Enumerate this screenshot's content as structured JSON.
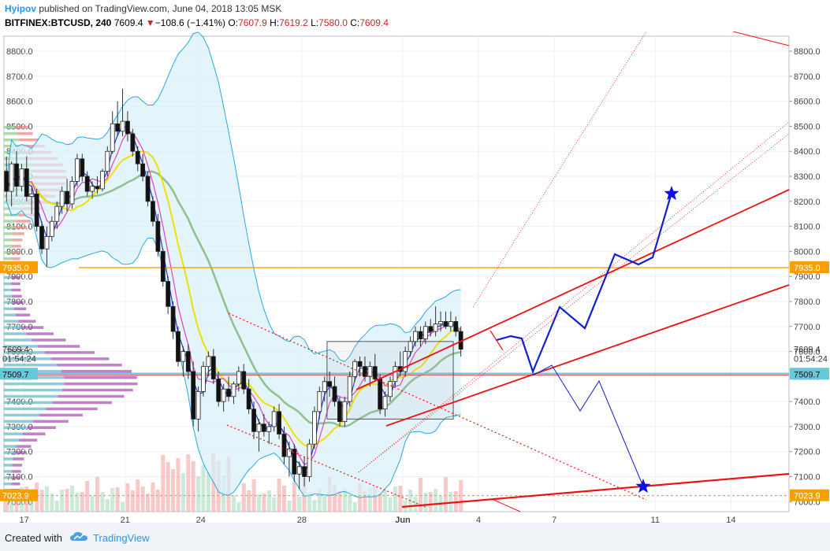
{
  "header": {
    "author": "Hyipov",
    "published": " published on TradingView.com, June 04, 2018 13:05 MSK",
    "symbol": "BITFINEX:BTCUSD, 240",
    "last": "7609.4",
    "change_arrow": "▼",
    "change": "−108.6 (−1.41%)",
    "o_label": "O:",
    "o_value": "7607.9",
    "h_label": "H:",
    "h_value": "7619.2",
    "l_label": "L:",
    "l_value": "7580.0",
    "c_label": "C:",
    "c_value": "7609.4"
  },
  "footer": {
    "created_with": "Created with",
    "brand": "TradingView",
    "logo_icon": "tradingview-cloud-icon"
  },
  "colors": {
    "bb_line": "#29a8e0",
    "bb_fill": "#d9effa",
    "ma_fast": "#3030d0",
    "ma_pink": "#e040c0",
    "ma_yellow": "#f0e000",
    "ma_green": "#8fc08f",
    "channel": "#ee1111",
    "projection": "#1020d0",
    "level_orange": "#f5a000",
    "level_teal": "#66c8d8",
    "star": "#1010e0"
  },
  "chart_data": {
    "type": "candlestick",
    "title": "",
    "ylim": [
      6960,
      8860
    ],
    "y_ticks": [
      "8800.0",
      "8700.0",
      "8600.0",
      "8500.0",
      "8400.0",
      "8300.0",
      "8200.0",
      "8100.0",
      "8000.0",
      "7900.0",
      "7800.0",
      "7700.0",
      "7600.0",
      "7500.0",
      "7400.0",
      "7300.0",
      "7200.0",
      "7100.0",
      "7000.0"
    ],
    "x_ticks": [
      {
        "label": "17",
        "day": 17
      },
      {
        "label": "21",
        "day": 21
      },
      {
        "label": "24",
        "day": 24
      },
      {
        "label": "28",
        "day": 28
      },
      {
        "label": "Jun",
        "day": 32
      },
      {
        "label": "4",
        "day": 35
      },
      {
        "label": "7",
        "day": 38
      },
      {
        "label": "11",
        "day": 42
      },
      {
        "label": "14",
        "day": 45
      }
    ],
    "x_range_day": [
      16.2,
      47.3
    ],
    "price_labels": [
      {
        "text": "7935.0",
        "value": 7935.0,
        "style": "orange"
      },
      {
        "text": "7609.4",
        "value": 7609.4,
        "style": "plain"
      },
      {
        "text": "01:54:24",
        "value": 7572,
        "style": "plain"
      },
      {
        "text": "7509.7",
        "value": 7509.7,
        "style": "teal"
      },
      {
        "text": "7023.9",
        "value": 7023.9,
        "style": "orange"
      }
    ],
    "levels": [
      {
        "value": 7935.0,
        "style": "solid-orange"
      },
      {
        "value": 7509.7,
        "style": "teal-red"
      },
      {
        "value": 7023.9,
        "style": "dotted-orange"
      }
    ],
    "candles": [
      {
        "d": 16.3,
        "o": 8320,
        "h": 8380,
        "l": 8200,
        "c": 8240
      },
      {
        "d": 16.5,
        "o": 8240,
        "h": 8360,
        "l": 8180,
        "c": 8350
      },
      {
        "d": 16.7,
        "o": 8350,
        "h": 8400,
        "l": 8220,
        "c": 8260
      },
      {
        "d": 16.9,
        "o": 8260,
        "h": 8350,
        "l": 8240,
        "c": 8330
      },
      {
        "d": 17.1,
        "o": 8330,
        "h": 8380,
        "l": 8200,
        "c": 8220
      },
      {
        "d": 17.3,
        "o": 8220,
        "h": 8260,
        "l": 8150,
        "c": 8230
      },
      {
        "d": 17.5,
        "o": 8230,
        "h": 8250,
        "l": 8080,
        "c": 8100
      },
      {
        "d": 17.7,
        "o": 8100,
        "h": 8120,
        "l": 7990,
        "c": 8010
      },
      {
        "d": 17.9,
        "o": 8010,
        "h": 8100,
        "l": 7940,
        "c": 8060
      },
      {
        "d": 18.1,
        "o": 8060,
        "h": 8140,
        "l": 8040,
        "c": 8120
      },
      {
        "d": 18.3,
        "o": 8120,
        "h": 8200,
        "l": 8090,
        "c": 8180
      },
      {
        "d": 18.5,
        "o": 8180,
        "h": 8260,
        "l": 8150,
        "c": 8240
      },
      {
        "d": 18.7,
        "o": 8240,
        "h": 8290,
        "l": 8160,
        "c": 8190
      },
      {
        "d": 18.9,
        "o": 8190,
        "h": 8300,
        "l": 8170,
        "c": 8280
      },
      {
        "d": 19.1,
        "o": 8280,
        "h": 8390,
        "l": 8260,
        "c": 8370
      },
      {
        "d": 19.3,
        "o": 8370,
        "h": 8390,
        "l": 8280,
        "c": 8300
      },
      {
        "d": 19.5,
        "o": 8300,
        "h": 8320,
        "l": 8220,
        "c": 8240
      },
      {
        "d": 19.7,
        "o": 8240,
        "h": 8280,
        "l": 8210,
        "c": 8260
      },
      {
        "d": 19.9,
        "o": 8260,
        "h": 8300,
        "l": 8230,
        "c": 8250
      },
      {
        "d": 20.1,
        "o": 8250,
        "h": 8330,
        "l": 8240,
        "c": 8320
      },
      {
        "d": 20.3,
        "o": 8320,
        "h": 8420,
        "l": 8300,
        "c": 8400
      },
      {
        "d": 20.5,
        "o": 8400,
        "h": 8560,
        "l": 8390,
        "c": 8510
      },
      {
        "d": 20.7,
        "o": 8510,
        "h": 8600,
        "l": 8460,
        "c": 8480
      },
      {
        "d": 20.9,
        "o": 8480,
        "h": 8650,
        "l": 8460,
        "c": 8520
      },
      {
        "d": 21.1,
        "o": 8520,
        "h": 8560,
        "l": 8440,
        "c": 8470
      },
      {
        "d": 21.3,
        "o": 8470,
        "h": 8490,
        "l": 8380,
        "c": 8400
      },
      {
        "d": 21.5,
        "o": 8400,
        "h": 8420,
        "l": 8320,
        "c": 8350
      },
      {
        "d": 21.7,
        "o": 8350,
        "h": 8390,
        "l": 8280,
        "c": 8300
      },
      {
        "d": 21.9,
        "o": 8300,
        "h": 8320,
        "l": 8180,
        "c": 8200
      },
      {
        "d": 22.1,
        "o": 8200,
        "h": 8220,
        "l": 8100,
        "c": 8120
      },
      {
        "d": 22.3,
        "o": 8120,
        "h": 8150,
        "l": 7980,
        "c": 8000
      },
      {
        "d": 22.5,
        "o": 8000,
        "h": 8010,
        "l": 7860,
        "c": 7880
      },
      {
        "d": 22.7,
        "o": 7880,
        "h": 7900,
        "l": 7750,
        "c": 7780
      },
      {
        "d": 22.9,
        "o": 7780,
        "h": 7800,
        "l": 7650,
        "c": 7680
      },
      {
        "d": 23.1,
        "o": 7680,
        "h": 7700,
        "l": 7540,
        "c": 7560
      },
      {
        "d": 23.3,
        "o": 7560,
        "h": 7620,
        "l": 7500,
        "c": 7600
      },
      {
        "d": 23.5,
        "o": 7600,
        "h": 7630,
        "l": 7490,
        "c": 7520
      },
      {
        "d": 23.7,
        "o": 7520,
        "h": 7560,
        "l": 7300,
        "c": 7330
      },
      {
        "d": 23.9,
        "o": 7330,
        "h": 7460,
        "l": 7280,
        "c": 7440
      },
      {
        "d": 24.1,
        "o": 7440,
        "h": 7560,
        "l": 7420,
        "c": 7540
      },
      {
        "d": 24.3,
        "o": 7540,
        "h": 7600,
        "l": 7500,
        "c": 7580
      },
      {
        "d": 24.5,
        "o": 7580,
        "h": 7610,
        "l": 7470,
        "c": 7490
      },
      {
        "d": 24.7,
        "o": 7490,
        "h": 7520,
        "l": 7380,
        "c": 7400
      },
      {
        "d": 24.9,
        "o": 7400,
        "h": 7470,
        "l": 7360,
        "c": 7450
      },
      {
        "d": 25.1,
        "o": 7450,
        "h": 7500,
        "l": 7400,
        "c": 7420
      },
      {
        "d": 25.3,
        "o": 7420,
        "h": 7480,
        "l": 7390,
        "c": 7470
      },
      {
        "d": 25.5,
        "o": 7470,
        "h": 7540,
        "l": 7440,
        "c": 7520
      },
      {
        "d": 25.7,
        "o": 7520,
        "h": 7550,
        "l": 7430,
        "c": 7450
      },
      {
        "d": 25.9,
        "o": 7450,
        "h": 7490,
        "l": 7350,
        "c": 7370
      },
      {
        "d": 26.1,
        "o": 7370,
        "h": 7400,
        "l": 7250,
        "c": 7280
      },
      {
        "d": 26.3,
        "o": 7280,
        "h": 7330,
        "l": 7200,
        "c": 7310
      },
      {
        "d": 26.5,
        "o": 7310,
        "h": 7350,
        "l": 7260,
        "c": 7280
      },
      {
        "d": 26.7,
        "o": 7280,
        "h": 7320,
        "l": 7230,
        "c": 7300
      },
      {
        "d": 26.9,
        "o": 7300,
        "h": 7380,
        "l": 7280,
        "c": 7360
      },
      {
        "d": 27.1,
        "o": 7360,
        "h": 7390,
        "l": 7250,
        "c": 7270
      },
      {
        "d": 27.3,
        "o": 7270,
        "h": 7300,
        "l": 7150,
        "c": 7180
      },
      {
        "d": 27.5,
        "o": 7180,
        "h": 7240,
        "l": 7100,
        "c": 7210
      },
      {
        "d": 27.7,
        "o": 7210,
        "h": 7230,
        "l": 7080,
        "c": 7110
      },
      {
        "d": 27.9,
        "o": 7110,
        "h": 7160,
        "l": 7050,
        "c": 7140
      },
      {
        "d": 28.1,
        "o": 7140,
        "h": 7180,
        "l": 7060,
        "c": 7100
      },
      {
        "d": 28.3,
        "o": 7100,
        "h": 7250,
        "l": 7080,
        "c": 7230
      },
      {
        "d": 28.5,
        "o": 7230,
        "h": 7380,
        "l": 7210,
        "c": 7360
      },
      {
        "d": 28.7,
        "o": 7360,
        "h": 7460,
        "l": 7330,
        "c": 7440
      },
      {
        "d": 28.9,
        "o": 7440,
        "h": 7500,
        "l": 7400,
        "c": 7480
      },
      {
        "d": 29.1,
        "o": 7480,
        "h": 7520,
        "l": 7420,
        "c": 7460
      },
      {
        "d": 29.3,
        "o": 7460,
        "h": 7500,
        "l": 7380,
        "c": 7400
      },
      {
        "d": 29.5,
        "o": 7400,
        "h": 7420,
        "l": 7300,
        "c": 7320
      },
      {
        "d": 29.7,
        "o": 7320,
        "h": 7420,
        "l": 7300,
        "c": 7400
      },
      {
        "d": 29.9,
        "o": 7400,
        "h": 7520,
        "l": 7380,
        "c": 7500
      },
      {
        "d": 30.1,
        "o": 7500,
        "h": 7570,
        "l": 7480,
        "c": 7560
      },
      {
        "d": 30.3,
        "o": 7560,
        "h": 7580,
        "l": 7500,
        "c": 7540
      },
      {
        "d": 30.5,
        "o": 7540,
        "h": 7580,
        "l": 7480,
        "c": 7500
      },
      {
        "d": 30.7,
        "o": 7500,
        "h": 7560,
        "l": 7460,
        "c": 7540
      },
      {
        "d": 30.9,
        "o": 7540,
        "h": 7590,
        "l": 7480,
        "c": 7490
      },
      {
        "d": 31.1,
        "o": 7490,
        "h": 7510,
        "l": 7350,
        "c": 7370
      },
      {
        "d": 31.3,
        "o": 7370,
        "h": 7440,
        "l": 7340,
        "c": 7420
      },
      {
        "d": 31.5,
        "o": 7420,
        "h": 7500,
        "l": 7400,
        "c": 7480
      },
      {
        "d": 31.7,
        "o": 7480,
        "h": 7560,
        "l": 7460,
        "c": 7540
      },
      {
        "d": 31.9,
        "o": 7540,
        "h": 7600,
        "l": 7500,
        "c": 7520
      },
      {
        "d": 32.1,
        "o": 7520,
        "h": 7620,
        "l": 7500,
        "c": 7600
      },
      {
        "d": 32.3,
        "o": 7600,
        "h": 7660,
        "l": 7580,
        "c": 7640
      },
      {
        "d": 32.5,
        "o": 7640,
        "h": 7700,
        "l": 7620,
        "c": 7680
      },
      {
        "d": 32.7,
        "o": 7680,
        "h": 7700,
        "l": 7620,
        "c": 7650
      },
      {
        "d": 32.9,
        "o": 7650,
        "h": 7720,
        "l": 7630,
        "c": 7700
      },
      {
        "d": 33.1,
        "o": 7700,
        "h": 7730,
        "l": 7660,
        "c": 7680
      },
      {
        "d": 33.3,
        "o": 7680,
        "h": 7780,
        "l": 7660,
        "c": 7710
      },
      {
        "d": 33.5,
        "o": 7710,
        "h": 7760,
        "l": 7680,
        "c": 7720
      },
      {
        "d": 33.7,
        "o": 7720,
        "h": 7760,
        "l": 7690,
        "c": 7700
      },
      {
        "d": 33.9,
        "o": 7700,
        "h": 7760,
        "l": 7680,
        "c": 7720
      },
      {
        "d": 34.1,
        "o": 7720,
        "h": 7740,
        "l": 7660,
        "c": 7680
      },
      {
        "d": 34.3,
        "o": 7680,
        "h": 7700,
        "l": 7580,
        "c": 7609
      }
    ],
    "volume_note": "volume bars shown at bottom, unlabeled"
  }
}
